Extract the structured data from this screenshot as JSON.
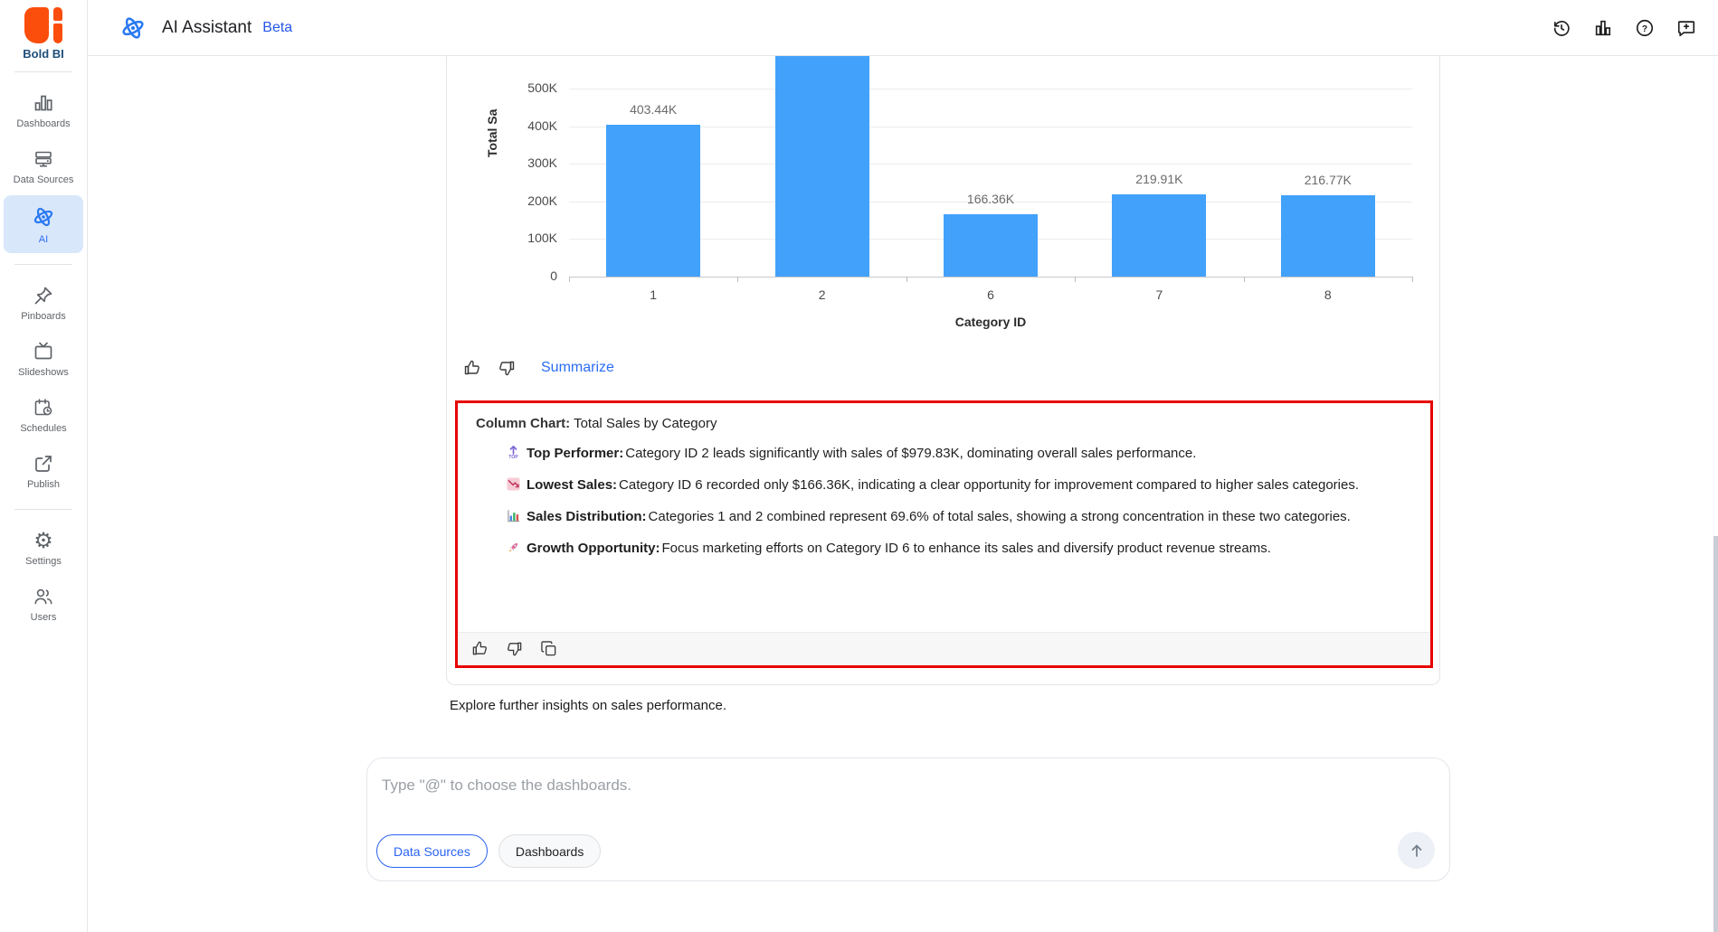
{
  "colors": {
    "brand_orange": "#fb4e0c",
    "accent_blue": "#2a6df5",
    "bar_blue": "#42a1fb",
    "highlight_red": "#e80000",
    "active_item_bg": "#d9e7fb"
  },
  "sidebar": {
    "logo_label": "Bold BI",
    "items": [
      {
        "label": "Dashboards",
        "icon": "dashboards-icon",
        "active": false
      },
      {
        "label": "Data Sources",
        "icon": "data-sources-icon",
        "active": false
      },
      {
        "label": "AI",
        "icon": "ai-atom-icon",
        "active": true
      },
      {
        "label": "Pinboards",
        "icon": "pin-icon",
        "active": false
      },
      {
        "label": "Slideshows",
        "icon": "slideshow-icon",
        "active": false
      },
      {
        "label": "Schedules",
        "icon": "schedule-icon",
        "active": false
      },
      {
        "label": "Publish",
        "icon": "publish-icon",
        "active": false
      },
      {
        "label": "Settings",
        "icon": "gear-icon",
        "active": false
      },
      {
        "label": "Users",
        "icon": "users-icon",
        "active": false
      }
    ]
  },
  "header": {
    "title": "AI Assistant",
    "badge": "Beta",
    "action_icons": [
      "history-icon",
      "usage-chart-icon",
      "help-icon",
      "feedback-icon"
    ]
  },
  "chart_data": {
    "type": "bar",
    "title": "",
    "categories": [
      "1",
      "2",
      "6",
      "7",
      "8"
    ],
    "values_k": [
      403.44,
      979.83,
      166.36,
      219.91,
      216.77
    ],
    "bar_labels": [
      "403.44K",
      "",
      "166.36K",
      "219.91K",
      "216.77K"
    ],
    "xlabel": "Category ID",
    "ylabel": "Total Sa",
    "y_ticks": [
      "500K",
      "400K",
      "300K",
      "200K",
      "100K",
      "0"
    ],
    "ylim_visible_k": [
      0,
      585
    ],
    "bar_color": "#42a1fb",
    "grid": "horizontal",
    "legend": "none"
  },
  "chart_actions": {
    "summarize_label": "Summarize"
  },
  "summary": {
    "title_label": "Column Chart:",
    "title_text": " Total Sales by Category",
    "bullets": [
      {
        "icon": "top-arrow-icon",
        "label": "Top Performer:",
        "text": "Category ID 2 leads significantly with sales of $979.83K, dominating overall sales performance."
      },
      {
        "icon": "chart-decreasing-icon",
        "label": "Lowest Sales:",
        "text": "Category ID 6 recorded only $166.36K, indicating a clear opportunity for improvement compared to higher sales categories."
      },
      {
        "icon": "bar-chart-icon",
        "label": "Sales Distribution:",
        "text": "Categories 1 and 2 combined represent 69.6% of total sales, showing a strong concentration in these two categories."
      },
      {
        "icon": "rocket-icon",
        "label": "Growth Opportunity:",
        "text": "Focus marketing efforts on Category ID 6 to enhance its sales and diversify product revenue streams."
      }
    ]
  },
  "suggestion_text": "Explore further insights on sales performance.",
  "composer": {
    "placeholder": "Type \"@\" to choose the dashboards.",
    "chips": [
      {
        "label": "Data Sources",
        "active": true
      },
      {
        "label": "Dashboards",
        "active": false
      }
    ]
  }
}
